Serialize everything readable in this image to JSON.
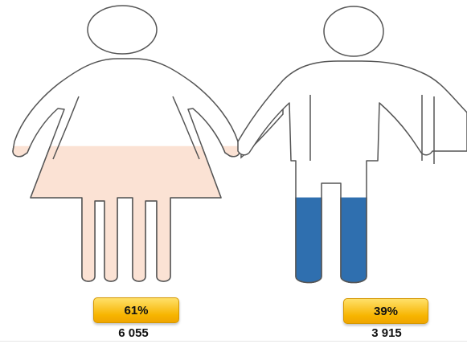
{
  "colors": {
    "women_fill": "#fbe2d4",
    "men_fill": "#2f6faf",
    "outline": "#555555",
    "badge": "#f7b500"
  },
  "chart_data": {
    "type": "pictogram",
    "series": [
      {
        "name": "",
        "percent_label": "61%",
        "share": 0.61,
        "count": "6 055",
        "icon": "woman-icon",
        "color": "#fbe2d4"
      },
      {
        "name": "",
        "percent_label": "39%",
        "share": 0.39,
        "count": "3 915",
        "icon": "man-icon",
        "color": "#2f6faf"
      }
    ]
  }
}
